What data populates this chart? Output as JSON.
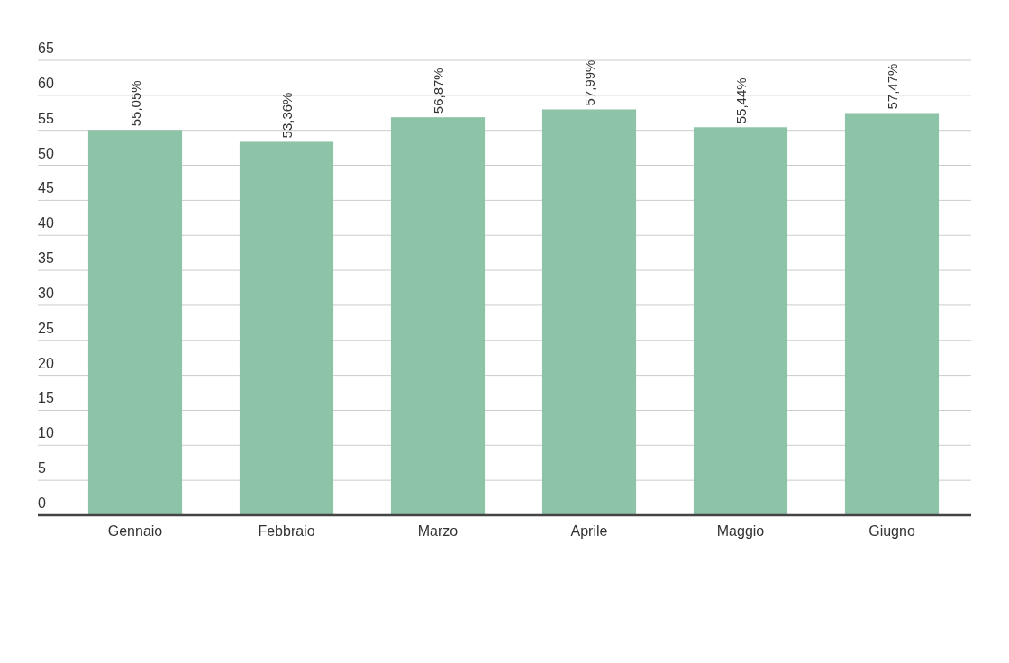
{
  "chart_data": {
    "type": "bar",
    "categories": [
      "Gennaio",
      "Febbraio",
      "Marzo",
      "Aprile",
      "Maggio",
      "Giugno"
    ],
    "values": [
      55.05,
      53.36,
      56.87,
      57.99,
      55.44,
      57.47
    ],
    "value_labels": [
      "55,05%",
      "53,36%",
      "56,87%",
      "57,99%",
      "55,44%",
      "57,47%"
    ],
    "color": "#8dc3a7",
    "ylim": [
      0,
      65
    ],
    "yticks": [
      0,
      5,
      10,
      15,
      20,
      25,
      30,
      35,
      40,
      45,
      50,
      55,
      60,
      65
    ],
    "grid": "y"
  }
}
